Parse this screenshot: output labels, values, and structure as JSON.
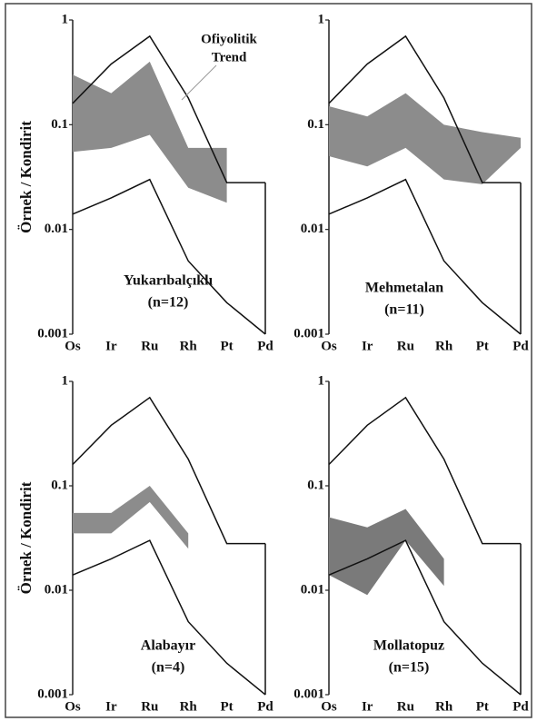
{
  "chart_data": [
    {
      "type": "band",
      "scale": "log",
      "label": [
        "Yukarıbalçıklı",
        "(n=12)"
      ],
      "ylabel": "Örnek / Kondirit",
      "annotation": [
        "Ofiyolitik",
        "Trend"
      ],
      "categories": [
        "Os",
        "Ir",
        "Ru",
        "Rh",
        "Pt",
        "Pd"
      ],
      "ylim": [
        0.001,
        1
      ],
      "yticks": [
        0.001,
        0.01,
        0.1,
        1
      ],
      "trend": {
        "upper": [
          0.16,
          0.38,
          0.7,
          0.18,
          0.028,
          0.028
        ],
        "lower": [
          0.014,
          0.02,
          0.03,
          0.005,
          0.002,
          0.001
        ]
      },
      "band": {
        "color": "#8c8c8c",
        "upper": [
          0.3,
          0.2,
          0.4,
          0.06,
          0.06,
          null
        ],
        "lower": [
          0.055,
          0.06,
          0.08,
          0.025,
          0.018,
          null
        ]
      }
    },
    {
      "type": "band",
      "scale": "log",
      "label": [
        "Mehmetalan",
        "(n=11)"
      ],
      "categories": [
        "Os",
        "Ir",
        "Ru",
        "Rh",
        "Pt",
        "Pd"
      ],
      "ylim": [
        0.001,
        1
      ],
      "yticks": [
        0.001,
        0.01,
        0.1,
        1
      ],
      "trend": {
        "upper": [
          0.16,
          0.38,
          0.7,
          0.18,
          0.028,
          0.028
        ],
        "lower": [
          0.014,
          0.02,
          0.03,
          0.005,
          0.002,
          0.001
        ]
      },
      "band": {
        "color": "#8c8c8c",
        "upper": [
          0.15,
          0.12,
          0.2,
          0.1,
          0.085,
          0.075
        ],
        "lower": [
          0.05,
          0.04,
          0.06,
          0.03,
          0.027,
          0.06
        ]
      }
    },
    {
      "type": "band",
      "scale": "log",
      "label": [
        "Alabayır",
        "(n=4)"
      ],
      "ylabel": "Örnek / Kondirit",
      "categories": [
        "Os",
        "Ir",
        "Ru",
        "Rh",
        "Pt",
        "Pd"
      ],
      "ylim": [
        0.001,
        1
      ],
      "yticks": [
        0.001,
        0.01,
        0.1,
        1
      ],
      "trend": {
        "upper": [
          0.16,
          0.38,
          0.7,
          0.18,
          0.028,
          0.028
        ],
        "lower": [
          0.014,
          0.02,
          0.03,
          0.005,
          0.002,
          0.001
        ]
      },
      "band": {
        "color": "#8c8c8c",
        "upper": [
          0.055,
          0.055,
          0.1,
          0.035,
          null,
          null
        ],
        "lower": [
          0.035,
          0.035,
          0.07,
          0.025,
          null,
          null
        ]
      }
    },
    {
      "type": "band",
      "scale": "log",
      "label": [
        "Mollatopuz",
        "(n=15)"
      ],
      "categories": [
        "Os",
        "Ir",
        "Ru",
        "Rh",
        "Pt",
        "Pd"
      ],
      "ylim": [
        0.001,
        1
      ],
      "yticks": [
        0.001,
        0.01,
        0.1,
        1
      ],
      "trend": {
        "upper": [
          0.16,
          0.38,
          0.7,
          0.18,
          0.028,
          0.028
        ],
        "lower": [
          0.014,
          0.02,
          0.03,
          0.005,
          0.002,
          0.001
        ]
      },
      "band": {
        "color": "#7a7a7a",
        "upper": [
          0.05,
          0.04,
          0.06,
          0.02,
          null,
          null
        ],
        "lower": [
          0.014,
          0.009,
          0.03,
          0.011,
          null,
          null
        ]
      }
    }
  ]
}
